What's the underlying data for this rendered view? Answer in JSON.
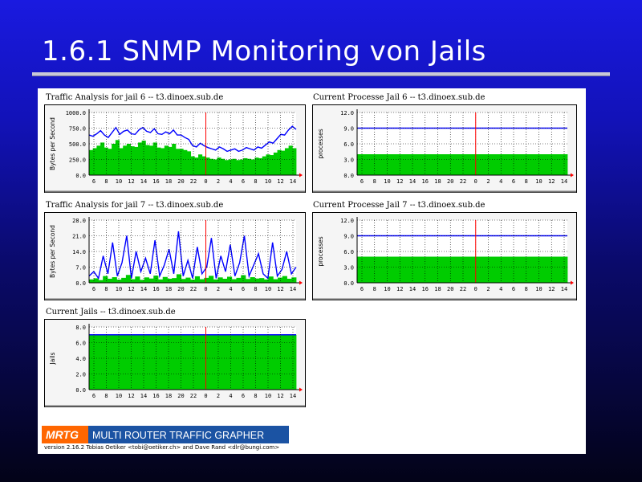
{
  "slide": {
    "title": "1.6.1 SNMP Monitoring von Jails"
  },
  "colors": {
    "in": "#00cc00",
    "out": "#0000ff",
    "now_line": "#ff0000",
    "frame_bg": "#f5f5f5",
    "logo_bg": "#1b53a3",
    "logo_badge": "#ff6600"
  },
  "footer": {
    "logo_short": "MRTG",
    "logo_long": "MULTI ROUTER TRAFFIC GRAPHER",
    "credit": "version 2.16.2    Tobias Oetiker <tobi@oetiker.ch> and Dave Rand <dlr@bungi.com>"
  },
  "chart_data": [
    {
      "type": "area",
      "title": "Traffic Analysis for jail 6 -- t3.dinoex.sub.de",
      "ylabel": "Bytes per Second",
      "ytick_labels": [
        "1000.0",
        "750.0",
        "500.0",
        "250.0",
        "0.0"
      ],
      "ylim": [
        0,
        1000
      ],
      "xtick_labels": [
        "6",
        "8",
        "10",
        "12",
        "14",
        "16",
        "18",
        "20",
        "22",
        "0",
        "2",
        "4",
        "6",
        "8",
        "10",
        "12",
        "14"
      ],
      "grid": true,
      "series": [
        {
          "kind": "area",
          "values": [
            400,
            430,
            470,
            520,
            440,
            420,
            500,
            560,
            430,
            470,
            500,
            460,
            450,
            520,
            550,
            480,
            470,
            520,
            440,
            430,
            470,
            450,
            500,
            420,
            420,
            400,
            380,
            300,
            280,
            330,
            300,
            280,
            260,
            250,
            280,
            260,
            240,
            250,
            260,
            240,
            250,
            270,
            260,
            250,
            280,
            270,
            300,
            330,
            320,
            360,
            400,
            390,
            430,
            470,
            430
          ]
        },
        {
          "kind": "line",
          "values": [
            640,
            620,
            660,
            710,
            640,
            600,
            680,
            760,
            650,
            700,
            720,
            660,
            650,
            720,
            760,
            700,
            680,
            740,
            660,
            650,
            690,
            660,
            720,
            640,
            640,
            600,
            570,
            470,
            450,
            510,
            470,
            440,
            420,
            400,
            450,
            420,
            380,
            400,
            420,
            380,
            400,
            440,
            420,
            400,
            450,
            430,
            480,
            530,
            510,
            580,
            650,
            640,
            720,
            780,
            730
          ]
        }
      ]
    },
    {
      "type": "area",
      "title": "Current Processe Jail 6 -- t3.dinoex.sub.de",
      "ylabel": "processes",
      "ytick_labels": [
        "12.0",
        "9.0",
        "6.0",
        "3.0",
        "0.0"
      ],
      "ylim": [
        0,
        12
      ],
      "xtick_labels": [
        "6",
        "8",
        "10",
        "12",
        "14",
        "16",
        "18",
        "20",
        "22",
        "0",
        "2",
        "4",
        "6",
        "8",
        "10",
        "12",
        "14"
      ],
      "grid": true,
      "series": [
        {
          "kind": "area",
          "values": [
            4,
            4,
            4,
            4,
            4,
            4,
            4,
            4,
            4,
            4,
            4,
            4,
            4,
            4,
            4,
            4,
            4,
            4,
            4,
            4
          ]
        },
        {
          "kind": "line",
          "values": [
            9,
            9,
            9,
            9,
            9,
            9,
            9,
            9,
            9,
            9,
            9,
            9,
            9,
            9,
            9,
            9,
            9,
            9,
            9,
            9
          ]
        }
      ]
    },
    {
      "type": "area",
      "title": "Traffic Analysis for jail 7 -- t3.dinoex.sub.de",
      "ylabel": "Bytes per Second",
      "ytick_labels": [
        "28.0",
        "21.0",
        "14.0",
        "7.0",
        "0.0"
      ],
      "ylim": [
        0,
        28
      ],
      "xtick_labels": [
        "6",
        "8",
        "10",
        "12",
        "14",
        "16",
        "18",
        "20",
        "22",
        "0",
        "2",
        "4",
        "6",
        "8",
        "10",
        "12",
        "14"
      ],
      "grid": true,
      "series": [
        {
          "kind": "area",
          "values": [
            1.5,
            2,
            1.2,
            3,
            1.8,
            2.5,
            1.4,
            2.2,
            3.5,
            1.6,
            2.8,
            1.3,
            2.4,
            1.9,
            3.2,
            1.5,
            2.6,
            1.8,
            2.1,
            3.8,
            1.7,
            2.3,
            1.4,
            2.9,
            1.6,
            2.2,
            3.1,
            1.5,
            2.4,
            1.8,
            2.7,
            1.6,
            2.2,
            3.4,
            1.7,
            2.5,
            1.9,
            2.1,
            1.5,
            2.8,
            1.6,
            2.3,
            3,
            1.8,
            2.4
          ]
        },
        {
          "kind": "line",
          "values": [
            3,
            5,
            2,
            12,
            4,
            18,
            3,
            9,
            21,
            2,
            14,
            5,
            11,
            4,
            19,
            3,
            8,
            15,
            4,
            23,
            3,
            10,
            2,
            16,
            4,
            7,
            20,
            2,
            12,
            5,
            17,
            3,
            9,
            21,
            3,
            8,
            13,
            4,
            2,
            18,
            3,
            6,
            14,
            4,
            7
          ]
        }
      ]
    },
    {
      "type": "area",
      "title": "Current Processe Jail 7 -- t3.dinoex.sub.de",
      "ylabel": "processes",
      "ytick_labels": [
        "12.0",
        "9.0",
        "6.0",
        "3.0",
        "0.0"
      ],
      "ylim": [
        0,
        12
      ],
      "xtick_labels": [
        "6",
        "8",
        "10",
        "12",
        "14",
        "16",
        "18",
        "20",
        "22",
        "0",
        "2",
        "4",
        "6",
        "8",
        "10",
        "12",
        "14"
      ],
      "grid": true,
      "series": [
        {
          "kind": "area",
          "values": [
            5,
            5,
            5,
            5,
            5,
            5,
            5,
            5,
            5,
            5,
            5,
            5,
            5,
            5,
            5,
            5,
            5,
            5,
            5,
            5
          ]
        },
        {
          "kind": "line",
          "values": [
            9,
            9,
            9,
            9,
            9,
            9,
            9,
            9,
            9,
            9,
            9,
            9,
            9,
            9,
            9,
            9,
            9,
            9,
            9,
            9
          ]
        }
      ]
    },
    {
      "type": "area",
      "title": "Current Jails -- t3.dinoex.sub.de",
      "ylabel": "Jails",
      "ytick_labels": [
        "8.0",
        "6.0",
        "4.0",
        "2.0",
        "0.0"
      ],
      "ylim": [
        0,
        8
      ],
      "xtick_labels": [
        "6",
        "8",
        "10",
        "12",
        "14",
        "16",
        "18",
        "20",
        "22",
        "0",
        "2",
        "4",
        "6",
        "8",
        "10",
        "12",
        "14"
      ],
      "grid": true,
      "series": [
        {
          "kind": "area",
          "values": [
            7,
            7,
            7,
            7,
            7,
            7,
            7,
            7,
            7,
            7,
            7,
            7,
            7,
            7,
            7,
            7,
            7,
            7,
            7,
            7
          ]
        },
        {
          "kind": "line",
          "values": [
            7,
            7,
            7,
            7,
            7,
            7,
            7,
            7,
            7,
            7,
            7,
            7,
            7,
            7,
            7,
            7,
            7,
            7,
            7,
            7
          ]
        }
      ]
    }
  ]
}
